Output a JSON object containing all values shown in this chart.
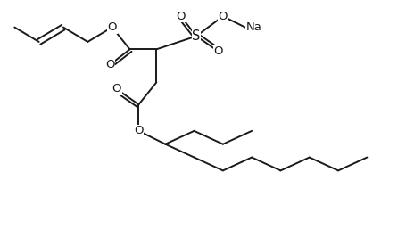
{
  "bg_color": "#ffffff",
  "line_color": "#1a1a1a",
  "line_width": 1.4,
  "text_color": "#1a1a1a",
  "font_size": 9.5,
  "figsize": [
    4.55,
    2.67
  ],
  "dpi": 100,
  "xlim": [
    0,
    9.1
  ],
  "ylim": [
    0,
    5.34
  ]
}
